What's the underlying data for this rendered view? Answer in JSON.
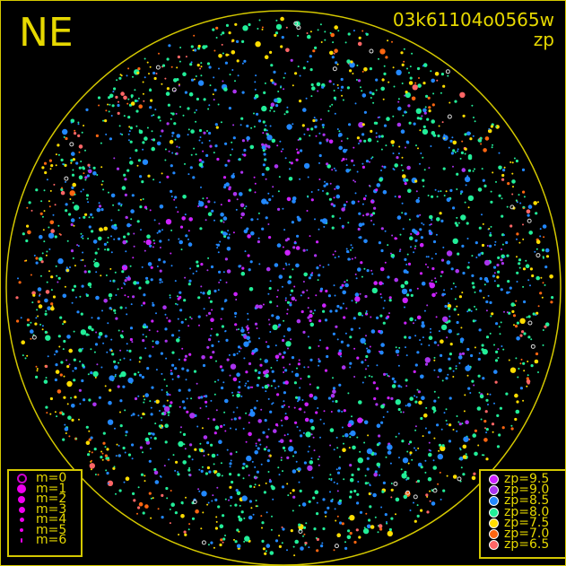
{
  "header": {
    "direction": "NE",
    "frame_id": "03k61104o0565w",
    "mode": "zp"
  },
  "magnitude_legend": [
    {
      "label": "m=0",
      "color": "#cc00cc",
      "hollow": true,
      "size": 11
    },
    {
      "label": "m=1",
      "color": "#ee00ee",
      "size": 10
    },
    {
      "label": "m=2",
      "color": "#ee00ee",
      "size": 8
    },
    {
      "label": "m=3",
      "color": "#ee00ee",
      "size": 7
    },
    {
      "label": "m=4",
      "color": "#ee00ee",
      "size": 5
    },
    {
      "label": "m=5",
      "color": "#ee00ee",
      "size": 4
    },
    {
      "label": "m=6",
      "color": "#ee00ee",
      "size": 2
    }
  ],
  "zp_legend": [
    {
      "label": "zp=9.5",
      "color": "#cc22ff"
    },
    {
      "label": "zp=9.0",
      "color": "#aa33ee"
    },
    {
      "label": "zp=8.5",
      "color": "#2288ff"
    },
    {
      "label": "zp=8.0",
      "color": "#22ee99"
    },
    {
      "label": "zp=7.5",
      "color": "#ffdd00"
    },
    {
      "label": "zp=7.0",
      "color": "#ff6611"
    },
    {
      "label": "zp=6.5",
      "color": "#ff6666"
    }
  ],
  "colors": {
    "frame": "#d4c800",
    "text": "#e6d800"
  }
}
